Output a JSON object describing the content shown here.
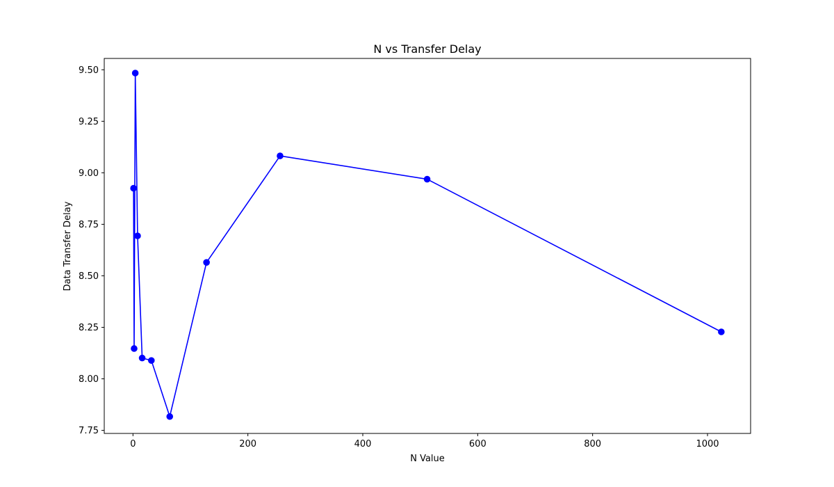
{
  "chart_data": {
    "type": "line",
    "title": "N vs Transfer Delay",
    "xlabel": "N Value",
    "ylabel": "Data Transfer Delay",
    "xlim": [
      -50,
      1075
    ],
    "ylim": [
      7.735,
      9.555
    ],
    "grid": false,
    "x_ticks": [
      0,
      200,
      400,
      600,
      800,
      1000
    ],
    "x_tick_labels": [
      "0",
      "200",
      "400",
      "600",
      "800",
      "1000"
    ],
    "y_ticks": [
      7.75,
      8.0,
      8.25,
      8.5,
      8.75,
      9.0,
      9.25,
      9.5
    ],
    "y_tick_labels": [
      "7.75",
      "8.00",
      "8.25",
      "8.50",
      "8.75",
      "9.00",
      "9.25",
      "9.50"
    ],
    "series": [
      {
        "color": "#0000ff",
        "marker": "circle",
        "x": [
          1,
          2,
          4,
          8,
          16,
          32,
          64,
          128,
          256,
          512,
          1024
        ],
        "y": [
          8.925,
          8.147,
          9.484,
          8.694,
          8.101,
          8.089,
          7.817,
          8.565,
          9.082,
          8.969,
          8.228
        ]
      }
    ]
  }
}
